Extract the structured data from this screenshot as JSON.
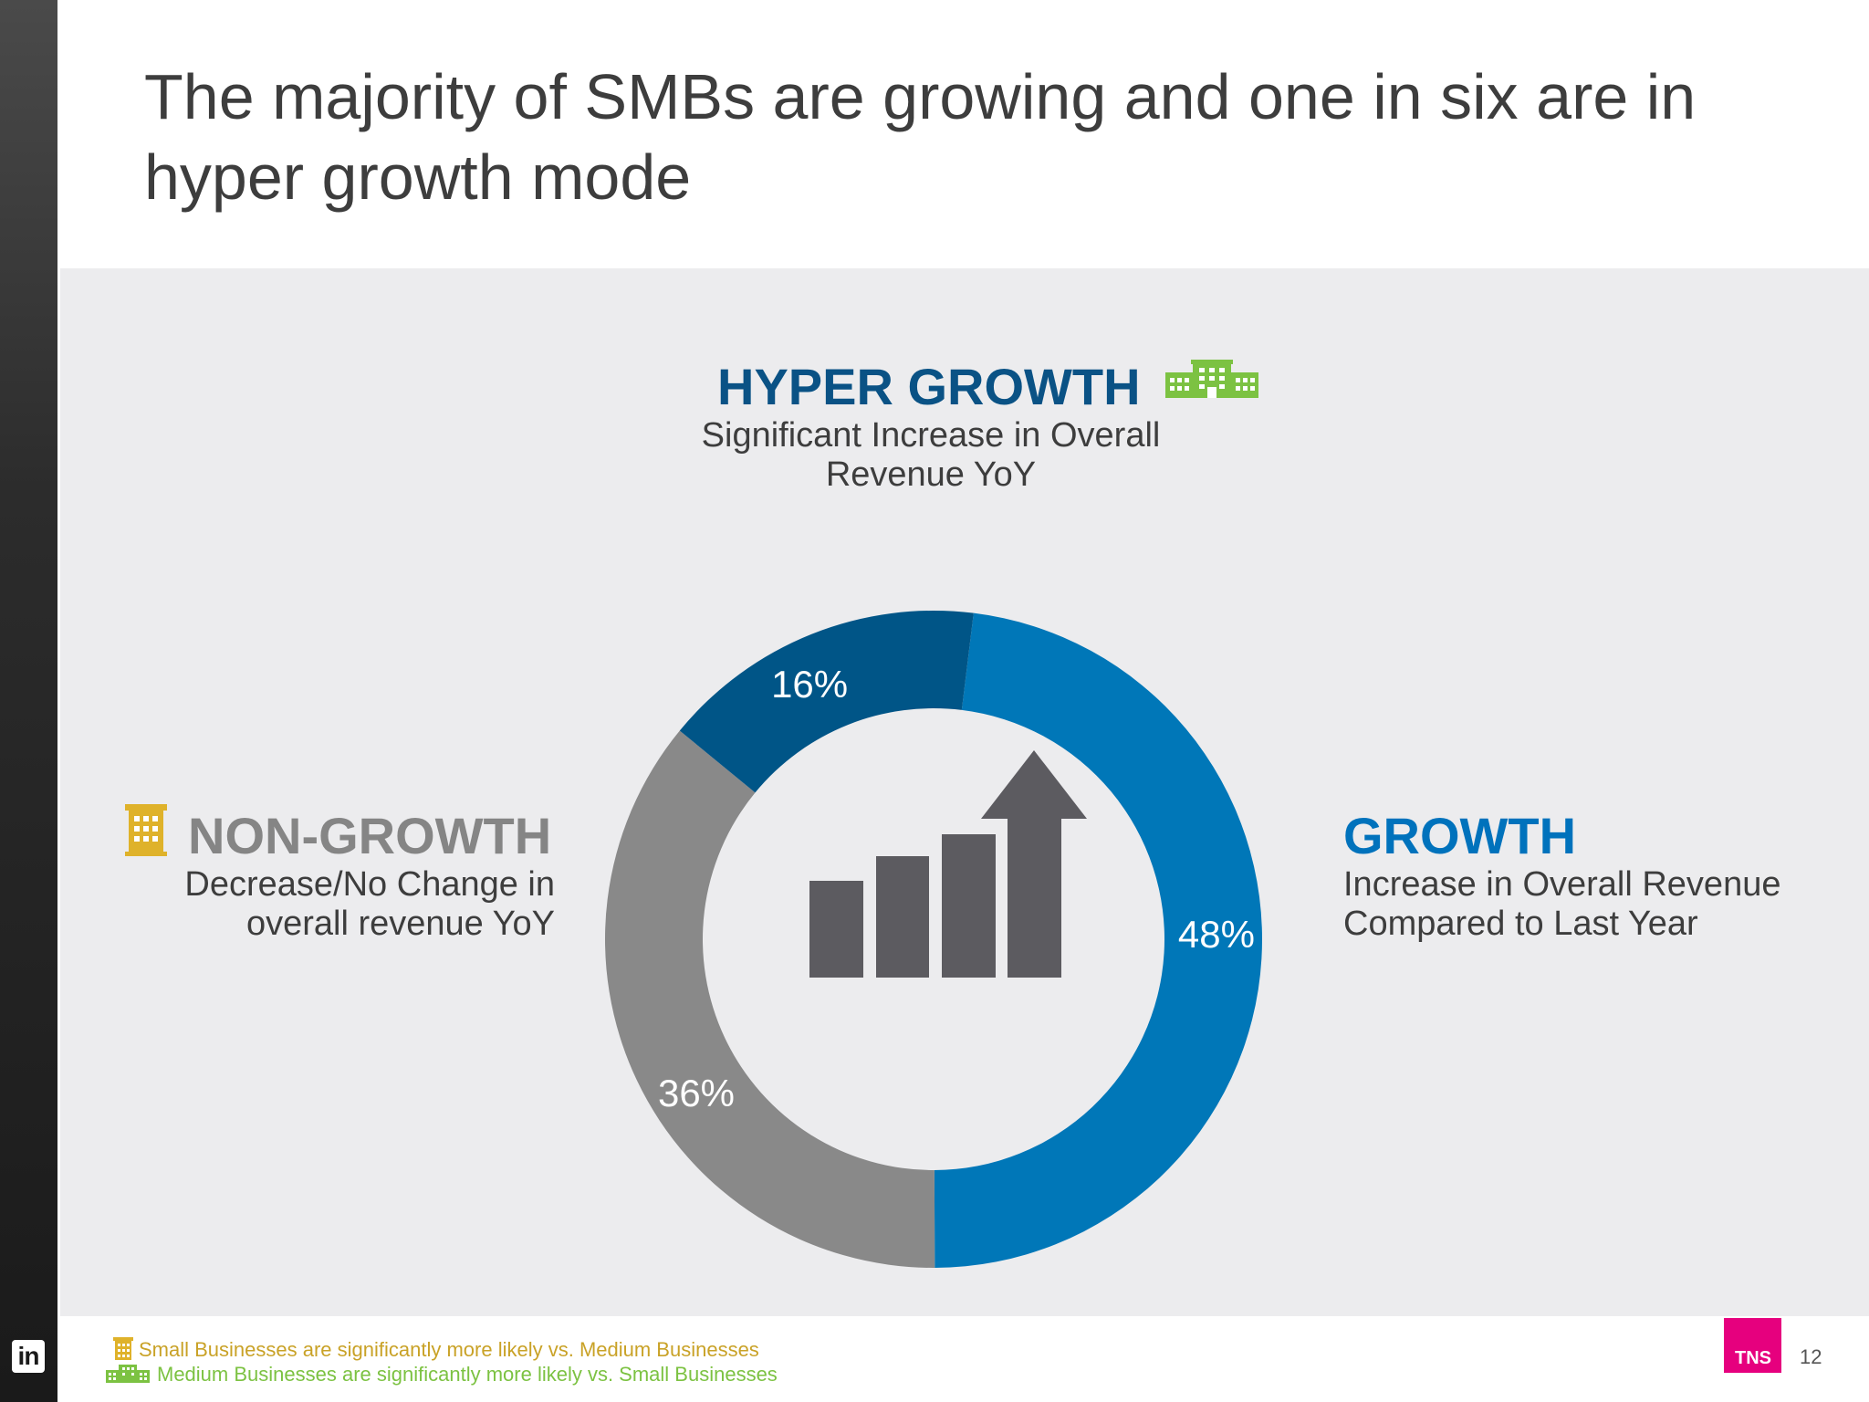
{
  "slide": {
    "title": "The majority of SMBs are growing and one in six are in hyper growth mode",
    "page_number": "12",
    "logo_text": "TNS",
    "linkedin_text": "in"
  },
  "categories": {
    "hyper": {
      "title": "HYPER GROWTH",
      "desc": "Significant Increase in Overall Revenue YoY"
    },
    "non": {
      "title": "NON-GROWTH",
      "desc": "Decrease/No Change in overall revenue YoY"
    },
    "growth": {
      "title": "GROWTH",
      "desc": "Increase in Overall Revenue Compared to Last Year"
    }
  },
  "footnotes": {
    "small": "Small Businesses are significantly more likely vs. Medium Businesses",
    "medium": "Medium Businesses are significantly more likely vs. Small Businesses"
  },
  "colors": {
    "hyper": "#005587",
    "growth": "#0077b8",
    "non": "#898989",
    "small_business_icon": "#dfb22a",
    "medium_business_icon": "#7cc242"
  },
  "icons": {
    "center": "growth-bar-chart-arrow-icon",
    "small_business": "small-building-icon",
    "medium_business": "medium-building-icon"
  },
  "chart_data": {
    "type": "pie",
    "categories": [
      "GROWTH",
      "NON-GROWTH",
      "HYPER GROWTH"
    ],
    "values": [
      48,
      36,
      16
    ],
    "labels": [
      "48%",
      "36%",
      "16%"
    ],
    "colors": [
      "#0077b8",
      "#898989",
      "#005587"
    ]
  }
}
